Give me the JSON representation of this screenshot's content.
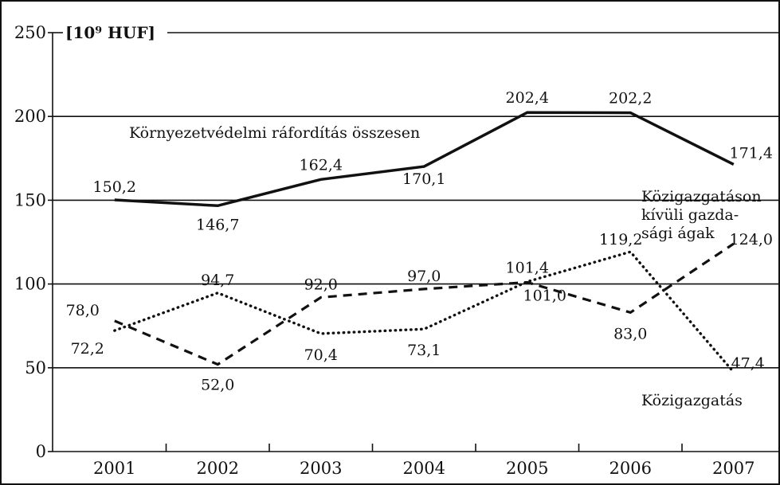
{
  "chart_data": {
    "type": "line",
    "unit_label": "[10⁹ HUF]",
    "categories": [
      "2001",
      "2002",
      "2003",
      "2004",
      "2005",
      "2006",
      "2007"
    ],
    "ylim": [
      0,
      250
    ],
    "yticks": [
      0,
      50,
      100,
      150,
      200,
      250
    ],
    "grid": true,
    "series": [
      {
        "id": "total",
        "name": "Környezetvédelmi ráfordítás összesen",
        "style": "solid",
        "values": [
          150.2,
          146.7,
          162.4,
          170.1,
          202.4,
          202.2,
          171.4
        ],
        "labels": [
          "150,2",
          "146,7",
          "162,4",
          "170,1",
          "202,4",
          "202,2",
          "171,4"
        ]
      },
      {
        "id": "non_public",
        "name_lines": [
          "Közigazgatáson",
          "kívüli gazda-",
          "sági ágak"
        ],
        "style": "dashed",
        "values": [
          78.0,
          52.0,
          92.0,
          97.0,
          101.0,
          83.0,
          124.0
        ],
        "labels": [
          "78,0",
          "52,0",
          "92,0",
          "97,0",
          "101,0",
          "83,0",
          "124,0"
        ]
      },
      {
        "id": "public",
        "name": "Közigazgatás",
        "style": "dotted",
        "values": [
          72.2,
          94.7,
          70.4,
          73.1,
          101.4,
          119.2,
          47.4
        ],
        "labels": [
          "72,2",
          "94,7",
          "70,4",
          "73,1",
          "101,4",
          "119,2",
          "47,4"
        ]
      }
    ]
  }
}
